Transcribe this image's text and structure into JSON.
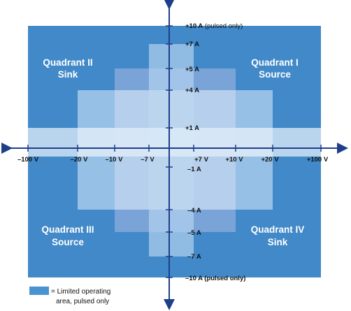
{
  "colors": {
    "background_field": "#4189c8",
    "axis": "#1f3e8a",
    "legend_swatch": "#4a93d1",
    "text_dark": "#111111",
    "text_light": "#ffffff"
  },
  "quadrants": {
    "q1": {
      "line1": "Quadrant I",
      "line2": "Source"
    },
    "q2": {
      "line1": "Quadrant II",
      "line2": "Sink"
    },
    "q3": {
      "line1": "Quadrant III",
      "line2": "Source"
    },
    "q4": {
      "line1": "Quadrant IV",
      "line2": "Sink"
    }
  },
  "x_ticks": {
    "neg100": "–100 V",
    "neg20": "–20 V",
    "neg10": "–10 V",
    "neg7": "–7 V",
    "pos7": "+7 V",
    "pos10": "+10 V",
    "pos20": "+20 V",
    "pos100": "+100 V"
  },
  "y_ticks": {
    "pos10_bold": "+10 A",
    "pos10_suffix": " (pulsed only)",
    "pos7": "+7 A",
    "pos5": "+5 A",
    "pos4": "+4 A",
    "pos1": "+1 A",
    "neg1": "–1 A",
    "neg4": "–4 A",
    "neg5": "–5 A",
    "neg7": "–7 A",
    "neg10": "–10 A (pulsed only)"
  },
  "legend": {
    "line1": "= Limited operating",
    "line2": "area, pulsed only"
  }
}
